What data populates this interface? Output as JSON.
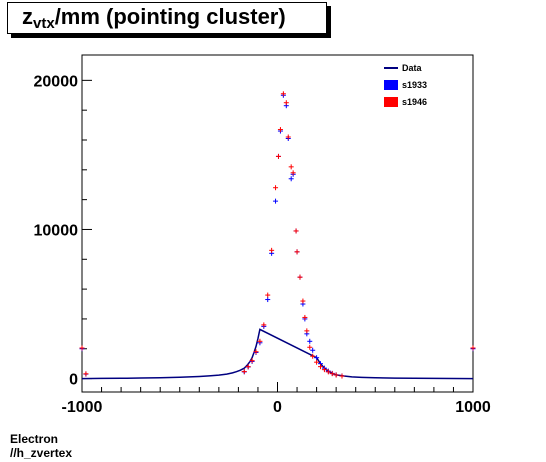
{
  "title": {
    "main": "z",
    "sub": "vtx",
    "rest": "/mm (pointing cluster)"
  },
  "footer": {
    "line1": "Electron",
    "line2": "//h_zvertex"
  },
  "chart_data": {
    "type": "scatter",
    "xlim": [
      -1000,
      1000
    ],
    "ylim": [
      -900,
      21700
    ],
    "xticks": [
      -1000,
      0,
      1000
    ],
    "yticks": [
      0,
      10000,
      20000
    ],
    "legend": {
      "placement": "top-right",
      "entries": [
        {
          "name": "Data",
          "color": "#000080",
          "marker": "line"
        },
        {
          "name": "s1933",
          "color": "#0000ff",
          "marker": "box"
        },
        {
          "name": "s1946",
          "color": "#ff0000",
          "marker": "box"
        }
      ]
    },
    "series": [
      {
        "name": "s1933",
        "color": "#0000ff",
        "points": [
          [
            -1000,
            2000
          ],
          [
            -980,
            300
          ],
          [
            -170,
            450
          ],
          [
            -150,
            780
          ],
          [
            -130,
            1150
          ],
          [
            -110,
            1750
          ],
          [
            -90,
            2400
          ],
          [
            -70,
            3500
          ],
          [
            -50,
            5300
          ],
          [
            -30,
            8400
          ],
          [
            -10,
            11900
          ],
          [
            5,
            14900
          ],
          [
            15,
            16600
          ],
          [
            30,
            19000
          ],
          [
            45,
            18300
          ],
          [
            55,
            16100
          ],
          [
            70,
            13400
          ],
          [
            80,
            13700
          ],
          [
            95,
            9900
          ],
          [
            100,
            8500
          ],
          [
            115,
            6800
          ],
          [
            130,
            5000
          ],
          [
            140,
            4000
          ],
          [
            150,
            3000
          ],
          [
            165,
            2500
          ],
          [
            180,
            1900
          ],
          [
            200,
            1400
          ],
          [
            220,
            1000
          ],
          [
            240,
            700
          ],
          [
            260,
            500
          ],
          [
            280,
            350
          ],
          [
            300,
            250
          ],
          [
            330,
            180
          ],
          [
            1000,
            2000
          ]
        ]
      },
      {
        "name": "s1946",
        "color": "#ff0000",
        "points": [
          [
            -1000,
            2050
          ],
          [
            -980,
            320
          ],
          [
            -170,
            470
          ],
          [
            -150,
            800
          ],
          [
            -130,
            1200
          ],
          [
            -110,
            1800
          ],
          [
            -90,
            2500
          ],
          [
            -70,
            3600
          ],
          [
            -50,
            5600
          ],
          [
            -30,
            8600
          ],
          [
            -10,
            12800
          ],
          [
            5,
            14900
          ],
          [
            15,
            16700
          ],
          [
            30,
            19100
          ],
          [
            45,
            18500
          ],
          [
            55,
            16200
          ],
          [
            70,
            14200
          ],
          [
            80,
            13800
          ],
          [
            95,
            9900
          ],
          [
            100,
            8500
          ],
          [
            115,
            6800
          ],
          [
            130,
            5200
          ],
          [
            140,
            4100
          ],
          [
            150,
            3200
          ],
          [
            165,
            2100
          ],
          [
            180,
            1500
          ],
          [
            200,
            1100
          ],
          [
            220,
            800
          ],
          [
            240,
            600
          ],
          [
            260,
            450
          ],
          [
            280,
            330
          ],
          [
            300,
            240
          ],
          [
            330,
            170
          ],
          [
            1000,
            2050
          ]
        ]
      },
      {
        "name": "Data",
        "color": "#000080",
        "curve": [
          [
            -1000,
            0
          ],
          [
            -900,
            10
          ],
          [
            -800,
            20
          ],
          [
            -700,
            40
          ],
          [
            -600,
            60
          ],
          [
            -500,
            90
          ],
          [
            -450,
            110
          ],
          [
            -400,
            140
          ],
          [
            -350,
            180
          ],
          [
            -300,
            230
          ],
          [
            -260,
            300
          ],
          [
            -230,
            380
          ],
          [
            -210,
            460
          ],
          [
            -190,
            560
          ],
          [
            -170,
            700
          ],
          [
            -155,
            900
          ],
          [
            -140,
            1150
          ],
          [
            -130,
            1400
          ],
          [
            -120,
            1750
          ],
          [
            -110,
            2150
          ],
          [
            -100,
            2700
          ],
          [
            -90,
            3300
          ],
          [
            200,
            1400
          ],
          [
            220,
            1000
          ],
          [
            240,
            700
          ],
          [
            260,
            500
          ],
          [
            280,
            350
          ],
          [
            300,
            250
          ],
          [
            340,
            170
          ],
          [
            380,
            110
          ],
          [
            430,
            80
          ],
          [
            500,
            55
          ],
          [
            600,
            35
          ],
          [
            700,
            20
          ],
          [
            800,
            12
          ],
          [
            900,
            6
          ],
          [
            1000,
            0
          ]
        ]
      }
    ]
  }
}
